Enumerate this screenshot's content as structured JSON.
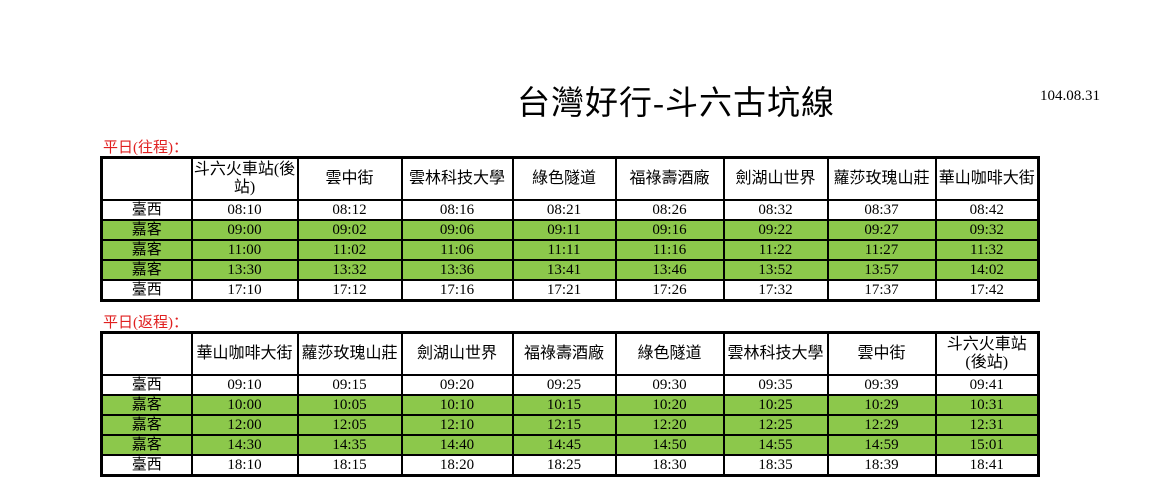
{
  "title": "台灣好行-斗六古坑線",
  "date": "104.08.31",
  "colors": {
    "highlight_row": "#8cc84b",
    "section_label": "#e02020"
  },
  "tables": [
    {
      "label": "平日(往程)：",
      "stops": [
        "斗六火車站(後站)",
        "雲中街",
        "雲林科技大學",
        "綠色隧道",
        "福祿壽酒廠",
        "劍湖山世界",
        "蘿莎玫瑰山莊",
        "華山咖啡大街"
      ],
      "rows": [
        {
          "operator": "臺西",
          "highlight": false,
          "times": [
            "08:10",
            "08:12",
            "08:16",
            "08:21",
            "08:26",
            "08:32",
            "08:37",
            "08:42"
          ]
        },
        {
          "operator": "嘉客",
          "highlight": true,
          "times": [
            "09:00",
            "09:02",
            "09:06",
            "09:11",
            "09:16",
            "09:22",
            "09:27",
            "09:32"
          ]
        },
        {
          "operator": "嘉客",
          "highlight": true,
          "times": [
            "11:00",
            "11:02",
            "11:06",
            "11:11",
            "11:16",
            "11:22",
            "11:27",
            "11:32"
          ]
        },
        {
          "operator": "嘉客",
          "highlight": true,
          "times": [
            "13:30",
            "13:32",
            "13:36",
            "13:41",
            "13:46",
            "13:52",
            "13:57",
            "14:02"
          ]
        },
        {
          "operator": "臺西",
          "highlight": false,
          "times": [
            "17:10",
            "17:12",
            "17:16",
            "17:21",
            "17:26",
            "17:32",
            "17:37",
            "17:42"
          ]
        }
      ]
    },
    {
      "label": "平日(返程)：",
      "stops": [
        "華山咖啡大街",
        "蘿莎玫瑰山莊",
        "劍湖山世界",
        "福祿壽酒廠",
        "綠色隧道",
        "雲林科技大學",
        "雲中街",
        "斗六火車站(後站)"
      ],
      "rows": [
        {
          "operator": "臺西",
          "highlight": false,
          "times": [
            "09:10",
            "09:15",
            "09:20",
            "09:25",
            "09:30",
            "09:35",
            "09:39",
            "09:41"
          ]
        },
        {
          "operator": "嘉客",
          "highlight": true,
          "times": [
            "10:00",
            "10:05",
            "10:10",
            "10:15",
            "10:20",
            "10:25",
            "10:29",
            "10:31"
          ]
        },
        {
          "operator": "嘉客",
          "highlight": true,
          "times": [
            "12:00",
            "12:05",
            "12:10",
            "12:15",
            "12:20",
            "12:25",
            "12:29",
            "12:31"
          ]
        },
        {
          "operator": "嘉客",
          "highlight": true,
          "times": [
            "14:30",
            "14:35",
            "14:40",
            "14:45",
            "14:50",
            "14:55",
            "14:59",
            "15:01"
          ]
        },
        {
          "operator": "臺西",
          "highlight": false,
          "times": [
            "18:10",
            "18:15",
            "18:20",
            "18:25",
            "18:30",
            "18:35",
            "18:39",
            "18:41"
          ]
        }
      ]
    }
  ]
}
